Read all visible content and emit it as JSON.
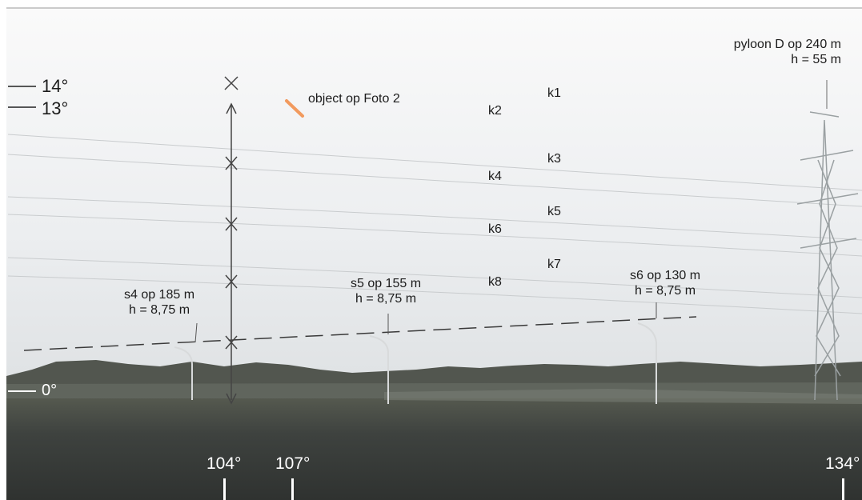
{
  "colors": {
    "sky": "#eef0f1",
    "field": "#3b3e3c",
    "trees": "#4a4e4c",
    "marker": "#f29a5e",
    "text": "#1c1c1c"
  },
  "object_label": "object op Foto 2",
  "horizon_marks": {
    "deg14": "14°",
    "deg13": "13°",
    "deg0": "0°"
  },
  "k_labels": [
    "k1",
    "k2",
    "k3",
    "k4",
    "k5",
    "k6",
    "k7",
    "k8"
  ],
  "lamps": [
    {
      "name": "s4",
      "line1": "s4 op 185 m",
      "line2": "h = 8,75 m"
    },
    {
      "name": "s5",
      "line1": "s5 op 155 m",
      "line2": "h = 8,75 m"
    },
    {
      "name": "s6",
      "line1": "s6 op 130 m",
      "line2": "h = 8,75 m"
    }
  ],
  "pylon": {
    "line1": "pyloon D op 240 m",
    "line2": "h = 55 m"
  },
  "azimuths": [
    "104°",
    "107°",
    "134°"
  ]
}
